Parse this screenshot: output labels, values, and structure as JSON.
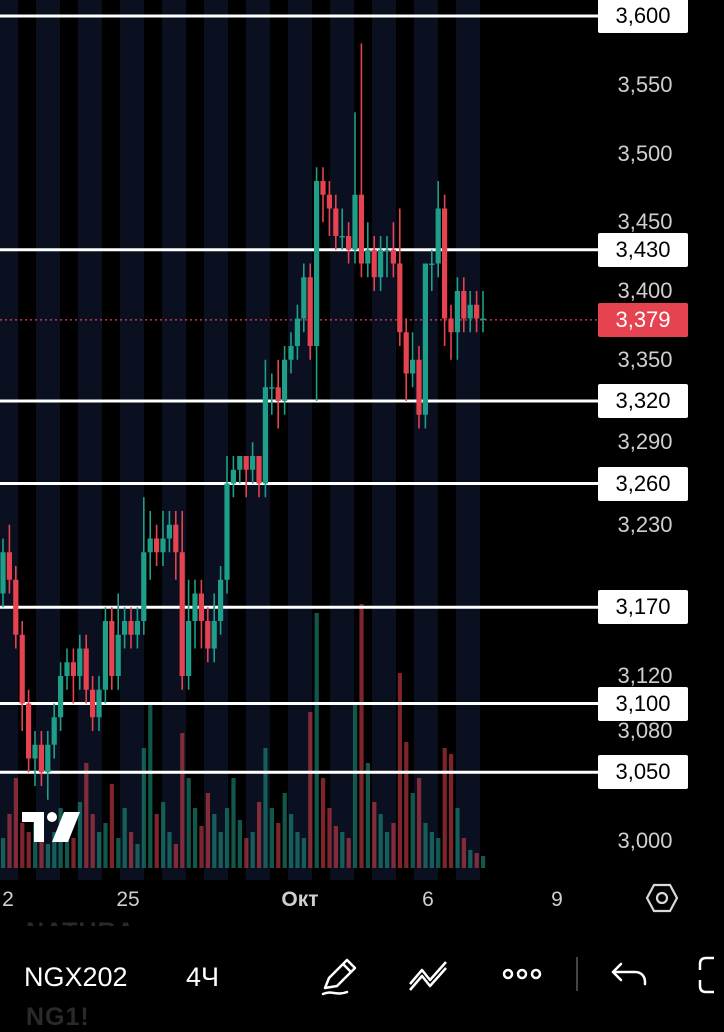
{
  "app": {
    "symbol": "NGX202",
    "interval": "4Ч",
    "ghost_top": "NATURA",
    "ghost_bottom": "NG1!"
  },
  "colors": {
    "up": "#1f9e89",
    "down": "#e5434f",
    "level_line": "#ffffff",
    "background": "#000000",
    "session_band": "#0b1020",
    "current_price": "#e5434f"
  },
  "icons": [
    "tradingview-logo-icon",
    "settings-hexagon-icon",
    "pen-draw-icon",
    "trend-lines-icon",
    "more-dots-icon",
    "undo-arrow-icon",
    "fullscreen-icon"
  ],
  "chart_data": {
    "type": "candlestick",
    "price_axis_labels": [
      "3,600",
      "3,550",
      "3,500",
      "3,450",
      "3,430",
      "3,400",
      "3,379",
      "3,350",
      "3,320",
      "3,290",
      "3,260",
      "3,230",
      "3,170",
      "3,120",
      "3,100",
      "3,080",
      "3,050",
      "3,000"
    ],
    "plain_ticks": [
      3.55,
      3.5,
      3.45,
      3.4,
      3.35,
      3.29,
      3.23,
      3.12,
      3.08,
      3.0
    ],
    "plain_tick_labels": [
      "3,550",
      "3,500",
      "3,450",
      "3,400",
      "3,350",
      "3,290",
      "3,230",
      "3,120",
      "3,080",
      "3,000"
    ],
    "horizontal_levels": [
      {
        "value": 3.6,
        "label": "3,600"
      },
      {
        "value": 3.43,
        "label": "3,430"
      },
      {
        "value": 3.32,
        "label": "3,320"
      },
      {
        "value": 3.26,
        "label": "3,260"
      },
      {
        "value": 3.17,
        "label": "3,170"
      },
      {
        "value": 3.1,
        "label": "3,100"
      },
      {
        "value": 3.05,
        "label": "3,050"
      }
    ],
    "current_price": {
      "value": 3.379,
      "label": "3,379"
    },
    "x_tick_labels": [
      "2",
      "25",
      "Окт",
      "6",
      "9"
    ],
    "candles": [
      [
        3.18,
        3.21,
        3.17,
        3.22
      ],
      [
        3.21,
        3.19,
        3.18,
        3.23
      ],
      [
        3.19,
        3.15,
        3.14,
        3.2
      ],
      [
        3.15,
        3.1,
        3.08,
        3.16
      ],
      [
        3.1,
        3.06,
        3.05,
        3.11
      ],
      [
        3.06,
        3.07,
        3.04,
        3.08
      ],
      [
        3.07,
        3.05,
        3.04,
        3.08
      ],
      [
        3.05,
        3.07,
        3.03,
        3.08
      ],
      [
        3.07,
        3.09,
        3.06,
        3.1
      ],
      [
        3.09,
        3.12,
        3.08,
        3.13
      ],
      [
        3.12,
        3.13,
        3.11,
        3.14
      ],
      [
        3.13,
        3.12,
        3.1,
        3.14
      ],
      [
        3.12,
        3.14,
        3.11,
        3.15
      ],
      [
        3.14,
        3.11,
        3.1,
        3.15
      ],
      [
        3.11,
        3.09,
        3.08,
        3.12
      ],
      [
        3.09,
        3.11,
        3.08,
        3.12
      ],
      [
        3.11,
        3.16,
        3.1,
        3.17
      ],
      [
        3.16,
        3.12,
        3.11,
        3.17
      ],
      [
        3.12,
        3.15,
        3.11,
        3.18
      ],
      [
        3.15,
        3.16,
        3.14,
        3.17
      ],
      [
        3.16,
        3.15,
        3.14,
        3.17
      ],
      [
        3.15,
        3.16,
        3.14,
        3.17
      ],
      [
        3.16,
        3.21,
        3.15,
        3.25
      ],
      [
        3.21,
        3.22,
        3.19,
        3.24
      ],
      [
        3.22,
        3.21,
        3.2,
        3.23
      ],
      [
        3.21,
        3.22,
        3.2,
        3.24
      ],
      [
        3.22,
        3.23,
        3.21,
        3.24
      ],
      [
        3.23,
        3.21,
        3.19,
        3.24
      ],
      [
        3.21,
        3.12,
        3.11,
        3.24
      ],
      [
        3.12,
        3.16,
        3.11,
        3.19
      ],
      [
        3.16,
        3.18,
        3.14,
        3.19
      ],
      [
        3.18,
        3.16,
        3.14,
        3.19
      ],
      [
        3.16,
        3.14,
        3.13,
        3.17
      ],
      [
        3.14,
        3.16,
        3.13,
        3.18
      ],
      [
        3.16,
        3.19,
        3.15,
        3.2
      ],
      [
        3.19,
        3.26,
        3.18,
        3.28
      ],
      [
        3.26,
        3.27,
        3.25,
        3.28
      ],
      [
        3.27,
        3.28,
        3.26,
        3.28
      ],
      [
        3.28,
        3.27,
        3.25,
        3.28
      ],
      [
        3.27,
        3.28,
        3.26,
        3.29
      ],
      [
        3.28,
        3.26,
        3.25,
        3.28
      ],
      [
        3.26,
        3.33,
        3.25,
        3.35
      ],
      [
        3.33,
        3.33,
        3.31,
        3.34
      ],
      [
        3.33,
        3.32,
        3.3,
        3.35
      ],
      [
        3.32,
        3.35,
        3.31,
        3.36
      ],
      [
        3.35,
        3.36,
        3.34,
        3.37
      ],
      [
        3.36,
        3.38,
        3.35,
        3.39
      ],
      [
        3.38,
        3.41,
        3.37,
        3.42
      ],
      [
        3.41,
        3.36,
        3.35,
        3.42
      ],
      [
        3.36,
        3.48,
        3.32,
        3.49
      ],
      [
        3.48,
        3.47,
        3.45,
        3.49
      ],
      [
        3.47,
        3.46,
        3.44,
        3.48
      ],
      [
        3.46,
        3.44,
        3.43,
        3.47
      ],
      [
        3.44,
        3.44,
        3.43,
        3.46
      ],
      [
        3.44,
        3.43,
        3.42,
        3.45
      ],
      [
        3.43,
        3.47,
        3.42,
        3.53
      ],
      [
        3.47,
        3.42,
        3.41,
        3.58
      ],
      [
        3.42,
        3.43,
        3.41,
        3.45
      ],
      [
        3.43,
        3.41,
        3.4,
        3.44
      ],
      [
        3.41,
        3.43,
        3.4,
        3.44
      ],
      [
        3.43,
        3.43,
        3.41,
        3.44
      ],
      [
        3.43,
        3.42,
        3.41,
        3.45
      ],
      [
        3.42,
        3.37,
        3.36,
        3.46
      ],
      [
        3.37,
        3.34,
        3.32,
        3.38
      ],
      [
        3.34,
        3.35,
        3.33,
        3.37
      ],
      [
        3.35,
        3.31,
        3.3,
        3.36
      ],
      [
        3.31,
        3.42,
        3.3,
        3.42
      ],
      [
        3.42,
        3.42,
        3.4,
        3.43
      ],
      [
        3.42,
        3.46,
        3.41,
        3.48
      ],
      [
        3.46,
        3.38,
        3.36,
        3.47
      ],
      [
        3.38,
        3.37,
        3.35,
        3.39
      ],
      [
        3.37,
        3.4,
        3.35,
        3.41
      ],
      [
        3.4,
        3.38,
        3.37,
        3.41
      ],
      [
        3.38,
        3.39,
        3.37,
        3.4
      ],
      [
        3.39,
        3.38,
        3.37,
        3.4
      ],
      [
        3.38,
        3.38,
        3.37,
        3.4
      ]
    ],
    "volumes": [
      0.1,
      0.18,
      0.3,
      0.15,
      0.12,
      0.18,
      0.1,
      0.08,
      0.12,
      0.2,
      0.14,
      0.1,
      0.22,
      0.35,
      0.18,
      0.12,
      0.15,
      0.28,
      0.1,
      0.2,
      0.12,
      0.08,
      0.4,
      0.55,
      0.18,
      0.22,
      0.12,
      0.08,
      0.45,
      0.3,
      0.2,
      0.14,
      0.25,
      0.18,
      0.12,
      0.2,
      0.3,
      0.16,
      0.1,
      0.12,
      0.22,
      0.4,
      0.2,
      0.15,
      0.25,
      0.18,
      0.12,
      0.1,
      0.52,
      0.85,
      0.3,
      0.2,
      0.14,
      0.12,
      0.1,
      0.55,
      0.88,
      0.35,
      0.22,
      0.18,
      0.12,
      0.15,
      0.65,
      0.42,
      0.25,
      0.3,
      0.15,
      0.12,
      0.1,
      0.4,
      0.38,
      0.2,
      0.1,
      0.06,
      0.05,
      0.04
    ]
  }
}
